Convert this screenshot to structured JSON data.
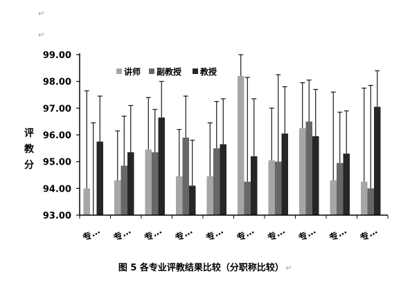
{
  "paragraph_marks": [
    "↵",
    "↵"
  ],
  "caption": {
    "text": "图 5 各专业评教结果比较（分职称比较）",
    "mark": "↵"
  },
  "chart_data": {
    "type": "bar",
    "title": "",
    "xlabel": "",
    "ylabel": "评教分",
    "ylim": [
      93.0,
      99.0
    ],
    "yticks": [
      "93.00",
      "94.00",
      "95.00",
      "96.00",
      "97.00",
      "98.00",
      "99.00"
    ],
    "categories": [
      "专…",
      "专…",
      "专…",
      "专…",
      "专…",
      "专…",
      "专…",
      "专…",
      "专…",
      "专…"
    ],
    "legend_position": "top-left",
    "grid": false,
    "error_bars": true,
    "series": [
      {
        "name": "讲师",
        "color": "#a6a6a6",
        "values": [
          94.0,
          94.3,
          95.45,
          94.45,
          94.45,
          98.2,
          95.05,
          96.25,
          94.3,
          94.25
        ],
        "error_upper": [
          97.65,
          96.15,
          97.4,
          96.2,
          96.45,
          99.0,
          97.0,
          97.95,
          97.6,
          97.75
        ]
      },
      {
        "name": "副教授",
        "color": "#676767",
        "values": [
          93.0,
          94.85,
          95.35,
          95.9,
          95.5,
          94.25,
          95.0,
          96.5,
          94.95,
          94.0
        ],
        "error_upper": [
          96.45,
          96.7,
          96.95,
          97.45,
          97.25,
          98.15,
          98.25,
          98.05,
          96.85,
          97.85
        ]
      },
      {
        "name": "教授",
        "color": "#262626",
        "values": [
          95.75,
          95.35,
          96.65,
          94.1,
          95.65,
          95.2,
          96.05,
          95.95,
          95.3,
          97.05
        ],
        "error_upper": [
          97.45,
          97.1,
          98.0,
          95.8,
          97.35,
          97.35,
          97.8,
          97.7,
          96.9,
          98.4
        ]
      }
    ]
  }
}
